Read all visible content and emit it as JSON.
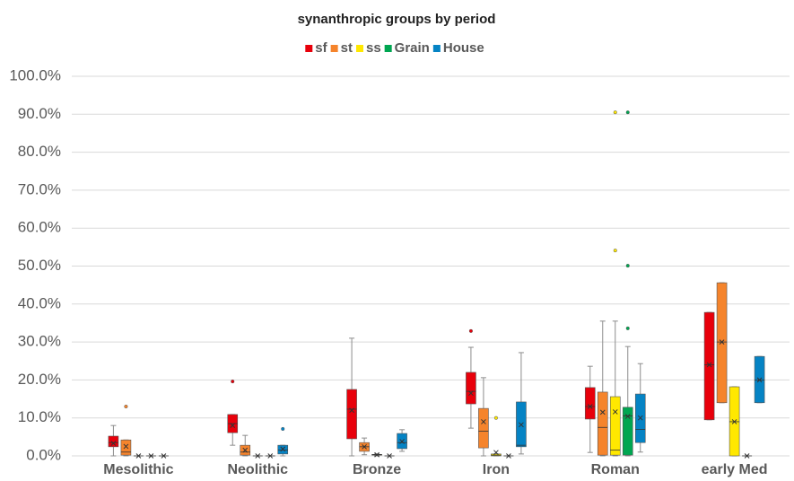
{
  "chart_data": {
    "type": "box",
    "title": "synanthropic groups by period",
    "categories": [
      "Mesolithic",
      "Neolithic",
      "Bronze",
      "Iron",
      "Roman",
      "early Med"
    ],
    "ylim": [
      0,
      100
    ],
    "yticks": [
      {
        "value": 0,
        "label": "0.0%"
      },
      {
        "value": 10,
        "label": "10.0%"
      },
      {
        "value": 20,
        "label": "20.0%"
      },
      {
        "value": 30,
        "label": "30.0%"
      },
      {
        "value": 40,
        "label": "40.0%"
      },
      {
        "value": 50,
        "label": "50.0%"
      },
      {
        "value": 60,
        "label": "60.0%"
      },
      {
        "value": 70,
        "label": "70.0%"
      },
      {
        "value": 80,
        "label": "80.0%"
      },
      {
        "value": 90,
        "label": "90.0%"
      },
      {
        "value": 100,
        "label": "100.0%"
      }
    ],
    "grid": true,
    "legend": "top",
    "series": [
      {
        "name": "sf",
        "color": "#e8000b",
        "values": [
          {
            "min": 0,
            "q1": 2.4,
            "median": 3.5,
            "q3": 5.2,
            "max": 8.0,
            "mean": 3.3
          },
          {
            "min": 2.8,
            "q1": 6.1,
            "median": 8.5,
            "q3": 10.9,
            "max": 10.9,
            "mean": 8,
            "outliers": [
              19.6
            ]
          },
          {
            "min": 0,
            "q1": 4.5,
            "median": 12.3,
            "q3": 17.5,
            "max": 31.0,
            "mean": 12
          },
          {
            "min": 7.3,
            "q1": 13.7,
            "median": 17,
            "q3": 22.0,
            "max": 28.6,
            "mean": 16.5,
            "outliers": [
              32.9
            ]
          },
          {
            "min": 0.9,
            "q1": 9.7,
            "median": 13,
            "q3": 18.0,
            "max": 23.6,
            "mean": 13
          },
          {
            "min": 9.5,
            "q1": 9.5,
            "median": 24,
            "q3": 37.8,
            "max": 37.8,
            "mean": 24
          }
        ]
      },
      {
        "name": "st",
        "color": "#f5842c",
        "values": [
          {
            "min": 0,
            "q1": 0.2,
            "median": 1,
            "q3": 4.2,
            "max": 4.2,
            "mean": 2.5,
            "outliers": [
              13.0
            ]
          },
          {
            "min": 0,
            "q1": 0.2,
            "median": 1,
            "q3": 2.8,
            "max": 5.4,
            "mean": 1.5
          },
          {
            "min": 0.3,
            "q1": 1.2,
            "median": 2.4,
            "q3": 3.5,
            "max": 4.7,
            "mean": 2.4
          },
          {
            "min": 0,
            "q1": 2.1,
            "median": 6.5,
            "q3": 12.5,
            "max": 20.6,
            "mean": 9
          },
          {
            "min": 0,
            "q1": 0.2,
            "median": 7.5,
            "q3": 16.8,
            "max": 35.5,
            "mean": 11.5
          },
          {
            "min": 14,
            "q1": 14,
            "median": 30,
            "q3": 45.6,
            "max": 45.6,
            "mean": 30
          }
        ]
      },
      {
        "name": "ss",
        "color": "#ffe800",
        "values": [
          {
            "min": 0,
            "q1": 0,
            "median": 0,
            "q3": 0,
            "max": 0,
            "mean": 0
          },
          {
            "min": 0,
            "q1": 0,
            "median": 0,
            "q3": 0,
            "max": 0,
            "mean": 0
          },
          {
            "min": 0,
            "q1": 0.2,
            "median": 0.3,
            "q3": 0.4,
            "max": 0.5,
            "mean": 0.3
          },
          {
            "min": 0,
            "q1": 0,
            "median": 0.2,
            "q3": 0.5,
            "max": 0.5,
            "mean": 0.9,
            "outliers": [
              10
            ]
          },
          {
            "min": 0,
            "q1": 0.2,
            "median": 1.5,
            "q3": 15.6,
            "max": 35.5,
            "mean": 11.6,
            "outliers": [
              54.1,
              90.5
            ]
          },
          {
            "min": 0,
            "q1": 0,
            "median": 9,
            "q3": 18.2,
            "max": 18.2,
            "mean": 9
          }
        ]
      },
      {
        "name": "Grain",
        "color": "#00a651",
        "values": [
          {
            "min": 0,
            "q1": 0,
            "median": 0,
            "q3": 0,
            "max": 0,
            "mean": 0
          },
          {
            "min": 0,
            "q1": 0,
            "median": 0,
            "q3": 0,
            "max": 0,
            "mean": 0
          },
          {
            "min": 0,
            "q1": 0,
            "median": 0,
            "q3": 0,
            "max": 0,
            "mean": 0
          },
          {
            "min": 0,
            "q1": 0,
            "median": 0,
            "q3": 0,
            "max": 0,
            "mean": 0
          },
          {
            "min": 0,
            "q1": 0.2,
            "median": 10.5,
            "q3": 12.8,
            "max": 28.8,
            "mean": 10.4,
            "outliers": [
              33.6,
              50.1,
              90.5
            ]
          },
          {
            "min": 0,
            "q1": 0,
            "median": 0,
            "q3": 0,
            "max": 0,
            "mean": 0
          }
        ]
      },
      {
        "name": "House",
        "color": "#0583c4",
        "values": [
          {
            "min": 0,
            "q1": 0,
            "median": 0,
            "q3": 0,
            "max": 0,
            "mean": 0
          },
          {
            "min": 0,
            "q1": 0.5,
            "median": 1.5,
            "q3": 2.8,
            "max": 2.8,
            "mean": 1.8,
            "outliers": [
              7.1
            ]
          },
          {
            "min": 1.2,
            "q1": 1.9,
            "median": 3.5,
            "q3": 5.9,
            "max": 6.9,
            "mean": 3.8
          },
          {
            "min": 0.5,
            "q1": 2.4,
            "median": 2.8,
            "q3": 14.2,
            "max": 27.2,
            "mean": 8.2
          },
          {
            "min": 1,
            "q1": 3.5,
            "median": 7,
            "q3": 16.3,
            "max": 24.3,
            "mean": 10
          },
          {
            "min": 14,
            "q1": 14,
            "median": 20,
            "q3": 26.2,
            "max": 26.2,
            "mean": 20
          }
        ]
      }
    ]
  }
}
